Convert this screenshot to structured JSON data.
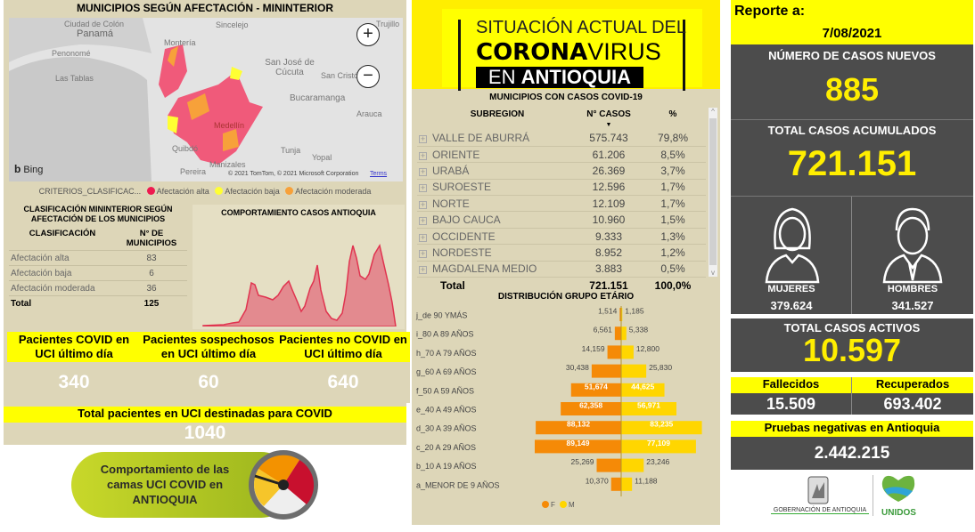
{
  "map_panel": {
    "title": "MUNICIPIOS SEGÚN AFECTACIÓN - MININTERIOR",
    "labels": [
      "Ciudad de Colón",
      "Panamá",
      "Penonomé",
      "Las Tablas",
      "Montería",
      "Sincelejo",
      "San José de Cúcuta",
      "San Cristóbal",
      "Bucaramanga",
      "Arauca",
      "Medellín",
      "Quibdó",
      "Tunja",
      "Yopal",
      "Manizales",
      "Pereira",
      "Trujillo"
    ],
    "zoom_in": "+",
    "zoom_out": "−",
    "provider": "Bing",
    "copyright": "© 2021 TomTom, © 2021 Microsoft Corporation",
    "terms": "Terms",
    "legend_title": "CRITERIOS_CLASIFICAC...",
    "legend": [
      {
        "label": "Afectación alta",
        "color": "#ee1a4f"
      },
      {
        "label": "Afectación baja",
        "color": "#ffff33"
      },
      {
        "label": "Afectación moderada",
        "color": "#f7a13a"
      }
    ]
  },
  "clasificacion": {
    "title": "CLASIFICACIÓN MININTERIOR SEGÚN AFECTACIÓN DE LOS MUNICIPIOS",
    "col1": "CLASIFICACIÓN",
    "col2": "N° DE MUNICIPIOS",
    "rows": [
      {
        "label": "Afectación alta",
        "value": "83"
      },
      {
        "label": "Afectación baja",
        "value": "6"
      },
      {
        "label": "Afectación moderada",
        "value": "36"
      }
    ],
    "total_label": "Total",
    "total_value": "125"
  },
  "comportamiento": {
    "title": "COMPORTAMIENTO CASOS ANTIOQUIA",
    "color": "#e0334f"
  },
  "uci": [
    {
      "label": "Pacientes COVID en UCI último día",
      "value": "340"
    },
    {
      "label": "Pacientes sospechosos en UCI último día",
      "value": "60"
    },
    {
      "label": "Pacientes no COVID en UCI último día",
      "value": "640"
    }
  ],
  "uci_total": {
    "label": "Total pacientes en UCI destinadas para COVID",
    "value": "1040"
  },
  "gauge_banner": {
    "text": "Comportamiento de las camas UCI COVID en ANTIOQUIA"
  },
  "header_logo": {
    "line1": "SITUACIÓN ACTUAL DEL",
    "line2a": "CORONA",
    "line2b": "VIRUS",
    "line3a": "EN ",
    "line3b": "ANTIOQUIA"
  },
  "subregiones": {
    "title": "MUNICIPIOS CON CASOS COVID-19",
    "col1": "SUBREGION",
    "col2": "N° CASOS",
    "col3": "%",
    "rows": [
      {
        "name": "VALLE DE ABURRÁ",
        "casos": "575.743",
        "pct": "79,8%"
      },
      {
        "name": "ORIENTE",
        "casos": "61.206",
        "pct": "8,5%"
      },
      {
        "name": "URABÁ",
        "casos": "26.369",
        "pct": "3,7%"
      },
      {
        "name": "SUROESTE",
        "casos": "12.596",
        "pct": "1,7%"
      },
      {
        "name": "NORTE",
        "casos": "12.109",
        "pct": "1,7%"
      },
      {
        "name": "BAJO CAUCA",
        "casos": "10.960",
        "pct": "1,5%"
      },
      {
        "name": "OCCIDENTE",
        "casos": "9.333",
        "pct": "1,3%"
      },
      {
        "name": "NORDESTE",
        "casos": "8.952",
        "pct": "1,2%"
      },
      {
        "name": "MAGDALENA MEDIO",
        "casos": "3.883",
        "pct": "0,5%"
      }
    ],
    "total_label": "Total",
    "total_casos": "721.151",
    "total_pct": "100,0%"
  },
  "chart_data": {
    "type": "bar",
    "title": "DISTRIBUCIÓN GRUPO ETÁRIO",
    "orientation": "horizontal-pyramid",
    "categories": [
      "j_de 90 YMÁS",
      "i_80 A 89 AÑOS",
      "h_70 A 79 AÑOS",
      "g_60 A 69 AÑOS",
      "f_50 A 59 AÑOS",
      "e_40 A 49 AÑOS",
      "d_30 A 39 AÑOS",
      "c_20 A 29 AÑOS",
      "b_10 A 19 AÑOS",
      "a_MENOR DE 9 AÑOS"
    ],
    "series": [
      {
        "name": "F",
        "color": "#f58a07",
        "values": [
          1514,
          6561,
          14159,
          30438,
          51674,
          62358,
          88132,
          89149,
          25269,
          10370
        ],
        "labels": [
          "1,514",
          "6,561",
          "14,159",
          "30,438",
          "51,674",
          "62,358",
          "88,132",
          "89,149",
          "25,269",
          "10,370"
        ]
      },
      {
        "name": "M",
        "color": "#ffd600",
        "values": [
          1185,
          5338,
          12800,
          25830,
          44625,
          56971,
          83235,
          77109,
          23246,
          11188
        ],
        "labels": [
          "1,185",
          "5,338",
          "12,800",
          "25,830",
          "44,625",
          "56,971",
          "83,235",
          "77,109",
          "23,246",
          "11,188"
        ]
      }
    ],
    "legend": "bottom"
  },
  "report": {
    "label": "Reporte a:",
    "date": "7/08/2021"
  },
  "nuevos": {
    "label": "NÚMERO DE CASOS NUEVOS",
    "value": "885"
  },
  "acumulados": {
    "label": "TOTAL CASOS ACUMULADOS",
    "value": "721.151"
  },
  "mujeres": {
    "label": "MUJERES",
    "value": "379.624"
  },
  "hombres": {
    "label": "HOMBRES",
    "value": "341.527"
  },
  "activos": {
    "label": "TOTAL CASOS ACTIVOS",
    "value": "10.597"
  },
  "fallecidos": {
    "label": "Fallecidos",
    "value": "15.509"
  },
  "recuperados": {
    "label": "Recuperados",
    "value": "693.402"
  },
  "pruebas": {
    "label": "Pruebas negativas en Antioquia",
    "value": "2.442.215"
  },
  "footer": {
    "gob": "GOBERNACIÓN DE ANTIOQUIA",
    "unidos": "UNIDOS"
  }
}
